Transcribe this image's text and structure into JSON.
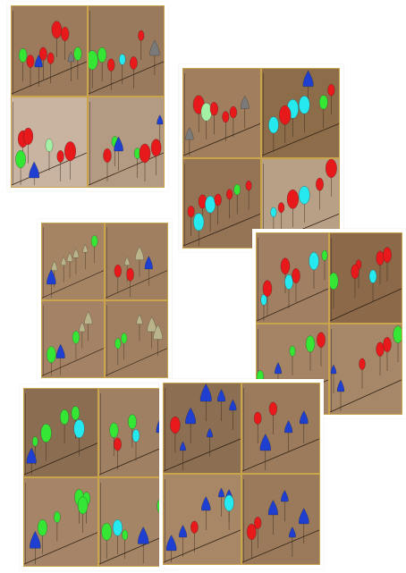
{
  "collage": {
    "cards": [
      {
        "id": "card-1",
        "panels": [
          {
            "bg": "#9c7a5c",
            "trees": [
              [
                "red",
                0.6,
                0.35
              ],
              [
                "red",
                0.71,
                0.38
              ],
              [
                "lime",
                0.15,
                0.62
              ],
              [
                "red",
                0.42,
                0.6
              ],
              [
                "gray",
                0.79,
                0.62
              ],
              [
                "lime",
                0.88,
                0.6
              ],
              [
                "blue",
                0.36,
                0.68
              ],
              [
                "red",
                0.52,
                0.64
              ],
              [
                "red",
                0.25,
                0.68
              ]
            ]
          },
          {
            "bg": "#9a7a5c",
            "trees": [
              [
                "red",
                0.7,
                0.38
              ],
              [
                "cyan",
                0.45,
                0.65
              ],
              [
                "lime",
                0.18,
                0.62
              ],
              [
                "red",
                0.3,
                0.72
              ],
              [
                "gray",
                0.88,
                0.55
              ],
              [
                "lime",
                0.05,
                0.7
              ],
              [
                "red",
                0.6,
                0.7
              ]
            ]
          },
          {
            "bg": "#c9b4a2",
            "trees": [
              [
                "red",
                0.15,
                0.55
              ],
              [
                "red",
                0.22,
                0.52
              ],
              [
                "mint",
                0.5,
                0.6
              ],
              [
                "red",
                0.65,
                0.72
              ],
              [
                "red",
                0.78,
                0.7
              ],
              [
                "lime",
                0.12,
                0.78
              ],
              [
                "blue",
                0.3,
                0.9
              ]
            ]
          },
          {
            "bg": "#b39a82",
            "trees": [
              [
                "blue",
                0.95,
                0.3
              ],
              [
                "lime",
                0.35,
                0.55
              ],
              [
                "blue",
                0.4,
                0.6
              ],
              [
                "red",
                0.25,
                0.72
              ],
              [
                "lime",
                0.65,
                0.68
              ],
              [
                "red",
                0.75,
                0.72
              ],
              [
                "red",
                0.9,
                0.65
              ]
            ]
          }
        ]
      },
      {
        "id": "card-2",
        "panels": [
          {
            "bg": "#a07e5e",
            "trees": [
              [
                "red",
                0.2,
                0.5
              ],
              [
                "mint",
                0.3,
                0.58
              ],
              [
                "red",
                0.4,
                0.52
              ],
              [
                "gray",
                0.8,
                0.45
              ],
              [
                "red",
                0.65,
                0.55
              ],
              [
                "gray",
                0.08,
                0.8
              ],
              [
                "red",
                0.55,
                0.6
              ]
            ]
          },
          {
            "bg": "#8c6c49",
            "trees": [
              [
                "blue",
                0.6,
                0.2
              ],
              [
                "red",
                0.9,
                0.3
              ],
              [
                "cyan",
                0.4,
                0.55
              ],
              [
                "cyan",
                0.55,
                0.5
              ],
              [
                "red",
                0.3,
                0.62
              ],
              [
                "cyan",
                0.15,
                0.72
              ],
              [
                "lime",
                0.8,
                0.45
              ]
            ]
          },
          {
            "bg": "#957456",
            "trees": [
              [
                "red",
                0.1,
                0.65
              ],
              [
                "red",
                0.25,
                0.55
              ],
              [
                "cyan",
                0.35,
                0.6
              ],
              [
                "red",
                0.45,
                0.52
              ],
              [
                "red",
                0.6,
                0.45
              ],
              [
                "lime",
                0.7,
                0.4
              ],
              [
                "red",
                0.85,
                0.35
              ],
              [
                "cyan",
                0.2,
                0.8
              ]
            ]
          },
          {
            "bg": "#b8a086",
            "trees": [
              [
                "red",
                0.9,
                0.2
              ],
              [
                "red",
                0.75,
                0.35
              ],
              [
                "cyan",
                0.55,
                0.5
              ],
              [
                "red",
                0.4,
                0.55
              ],
              [
                "red",
                0.25,
                0.6
              ],
              [
                "cyan",
                0.15,
                0.65
              ]
            ]
          }
        ]
      },
      {
        "id": "card-3",
        "panels": [
          {
            "bg": "#a58464",
            "trees": [
              [
                "khaki",
                0.2,
                0.62
              ],
              [
                "khaki",
                0.35,
                0.55
              ],
              [
                "khaki",
                0.55,
                0.45
              ],
              [
                "khaki",
                0.7,
                0.38
              ],
              [
                "lime",
                0.85,
                0.3
              ],
              [
                "khaki",
                0.45,
                0.5
              ],
              [
                "blue",
                0.15,
                0.8
              ]
            ]
          },
          {
            "bg": "#9f7f60",
            "trees": [
              [
                "khaki",
                0.35,
                0.55
              ],
              [
                "khaki",
                0.55,
                0.48
              ],
              [
                "red",
                0.2,
                0.7
              ],
              [
                "red",
                0.4,
                0.75
              ],
              [
                "blue",
                0.7,
                0.6
              ]
            ]
          },
          {
            "bg": "#a38265",
            "trees": [
              [
                "khaki",
                0.75,
                0.3
              ],
              [
                "khaki",
                0.65,
                0.4
              ],
              [
                "lime",
                0.55,
                0.55
              ],
              [
                "blue",
                0.3,
                0.75
              ],
              [
                "lime",
                0.15,
                0.8
              ]
            ]
          },
          {
            "bg": "#a08061",
            "trees": [
              [
                "khaki",
                0.55,
                0.3
              ],
              [
                "khaki",
                0.75,
                0.4
              ],
              [
                "lime",
                0.3,
                0.55
              ],
              [
                "lime",
                0.2,
                0.62
              ],
              [
                "khaki",
                0.85,
                0.5
              ]
            ]
          }
        ]
      },
      {
        "id": "card-4",
        "panels": [
          {
            "bg": "#a07f62",
            "trees": [
              [
                "red",
                0.4,
                0.45
              ],
              [
                "cyan",
                0.8,
                0.4
              ],
              [
                "cyan",
                0.45,
                0.62
              ],
              [
                "cyan",
                0.1,
                0.8
              ],
              [
                "red",
                0.15,
                0.7
              ],
              [
                "red",
                0.55,
                0.55
              ],
              [
                "lime",
                0.95,
                0.3
              ]
            ]
          },
          {
            "bg": "#8b6949",
            "trees": [
              [
                "red",
                0.4,
                0.4
              ],
              [
                "red",
                0.7,
                0.35
              ],
              [
                "red",
                0.8,
                0.32
              ],
              [
                "cyan",
                0.6,
                0.55
              ],
              [
                "lime",
                0.05,
                0.62
              ],
              [
                "red",
                0.35,
                0.5
              ]
            ]
          },
          {
            "bg": "#a58466",
            "trees": [
              [
                "lime",
                0.75,
                0.3
              ],
              [
                "lime",
                0.5,
                0.35
              ],
              [
                "blue",
                0.3,
                0.55
              ],
              [
                "lime",
                0.05,
                0.65
              ],
              [
                "red",
                0.9,
                0.25
              ]
            ]
          },
          {
            "bg": "#a68768",
            "trees": [
              [
                "blue",
                0.05,
                0.55
              ],
              [
                "red",
                0.7,
                0.35
              ],
              [
                "red",
                0.8,
                0.3
              ],
              [
                "lime",
                0.95,
                0.2
              ],
              [
                "red",
                0.45,
                0.5
              ],
              [
                "blue",
                0.15,
                0.75
              ]
            ]
          }
        ]
      },
      {
        "id": "card-5",
        "panels": [
          {
            "bg": "#8b6d51",
            "trees": [
              [
                "lime",
                0.15,
                0.65
              ],
              [
                "lime",
                0.3,
                0.6
              ],
              [
                "lime",
                0.55,
                0.4
              ],
              [
                "lime",
                0.7,
                0.35
              ],
              [
                "cyan",
                0.75,
                0.55
              ],
              [
                "blue",
                0.1,
                0.85
              ]
            ]
          },
          {
            "bg": "#a08063",
            "trees": [
              [
                "lime",
                0.2,
                0.55
              ],
              [
                "cyan",
                0.5,
                0.6
              ],
              [
                "lime",
                0.45,
                0.45
              ],
              [
                "blue",
                0.85,
                0.5
              ],
              [
                "red",
                0.25,
                0.7
              ]
            ]
          },
          {
            "bg": "#a58467",
            "trees": [
              [
                "lime",
                0.75,
                0.3
              ],
              [
                "lime",
                0.85,
                0.3
              ],
              [
                "lime",
                0.8,
                0.4
              ],
              [
                "lime",
                0.45,
                0.5
              ],
              [
                "blue",
                0.15,
                0.8
              ],
              [
                "lime",
                0.25,
                0.65
              ]
            ]
          },
          {
            "bg": "#a48566",
            "trees": [
              [
                "cyan",
                0.25,
                0.65
              ],
              [
                "lime",
                0.1,
                0.7
              ],
              [
                "lime",
                0.35,
                0.7
              ],
              [
                "blue",
                0.6,
                0.75
              ],
              [
                "lime",
                0.85,
                0.4
              ]
            ]
          }
        ]
      },
      {
        "id": "card-6",
        "panels": [
          {
            "bg": "#8c6e52",
            "trees": [
              [
                "blue",
                0.55,
                0.2
              ],
              [
                "blue",
                0.75,
                0.2
              ],
              [
                "red",
                0.15,
                0.55
              ],
              [
                "blue",
                0.35,
                0.45
              ],
              [
                "blue",
                0.9,
                0.3
              ],
              [
                "blue",
                0.25,
                0.75
              ],
              [
                "blue",
                0.6,
                0.6
              ]
            ]
          },
          {
            "bg": "#9b7b5c",
            "trees": [
              [
                "red",
                0.2,
                0.45
              ],
              [
                "red",
                0.4,
                0.35
              ],
              [
                "blue",
                0.6,
                0.55
              ],
              [
                "blue",
                0.8,
                0.45
              ],
              [
                "blue",
                0.3,
                0.75
              ]
            ]
          },
          {
            "bg": "#a88766",
            "trees": [
              [
                "blue",
                0.75,
                0.25
              ],
              [
                "blue",
                0.85,
                0.3
              ],
              [
                "blue",
                0.55,
                0.4
              ],
              [
                "cyan",
                0.85,
                0.4
              ],
              [
                "blue",
                0.25,
                0.7
              ],
              [
                "red",
                0.4,
                0.65
              ],
              [
                "blue",
                0.1,
                0.85
              ]
            ]
          },
          {
            "bg": "#9a7a5b",
            "trees": [
              [
                "blue",
                0.55,
                0.3
              ],
              [
                "blue",
                0.4,
                0.45
              ],
              [
                "red",
                0.2,
                0.6
              ],
              [
                "red",
                0.12,
                0.72
              ],
              [
                "blue",
                0.8,
                0.55
              ],
              [
                "blue",
                0.65,
                0.7
              ]
            ]
          }
        ]
      }
    ],
    "palette": {
      "red": "#e8191b",
      "lime": "#35e635",
      "cyan": "#26e8ef",
      "blue": "#1f3fd1",
      "gray": "#7a7a7a",
      "mint": "#a4f0a4",
      "khaki": "#b9b48a"
    }
  }
}
